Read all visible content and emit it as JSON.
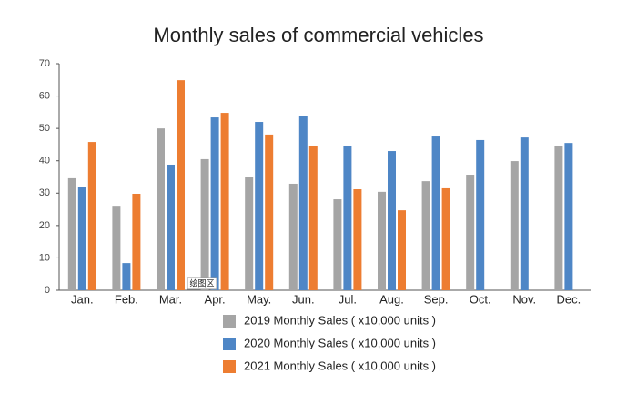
{
  "chart_data": {
    "type": "bar",
    "title": "Monthly sales of commercial vehicles",
    "categories": [
      "Jan.",
      "Feb.",
      "Mar.",
      "Apr.",
      "May.",
      "Jun.",
      "Jul.",
      "Aug.",
      "Sep.",
      "Oct.",
      "Nov.",
      "Dec."
    ],
    "series": [
      {
        "name": "2019 Monthly Sales ( x10,000 units )",
        "color": "#a5a5a5",
        "values": [
          34.6,
          26.1,
          50,
          40.5,
          35.1,
          32.9,
          28.1,
          30.4,
          33.7,
          35.7,
          39.9,
          44.7
        ]
      },
      {
        "name": "2020 Monthly Sales ( x10,000 units )",
        "color": "#4e86c6",
        "values": [
          31.8,
          8.4,
          38.8,
          53.4,
          52,
          53.7,
          44.7,
          43,
          47.5,
          46.4,
          47.2,
          45.5
        ]
      },
      {
        "name": "2021 Monthly Sales ( x10,000 units )",
        "color": "#ed7d31",
        "values": [
          45.8,
          29.8,
          64.9,
          54.8,
          48.1,
          44.7,
          31.2,
          24.7,
          31.5,
          null,
          null,
          null
        ]
      }
    ],
    "ylim": [
      0,
      70
    ],
    "yticks": [
      0,
      10,
      20,
      30,
      40,
      50,
      60,
      70
    ],
    "grid": false,
    "annotation": "绘图区"
  }
}
